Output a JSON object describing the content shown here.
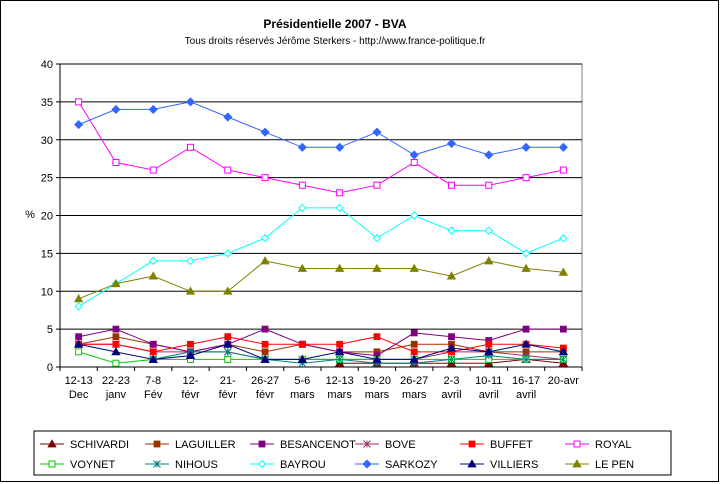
{
  "chart_data": {
    "type": "line",
    "title": "Présidentielle 2007 - BVA",
    "subtitle": "Tous droits réservés Jérôme Sterkers - http://www.france-politique.fr",
    "xlabel": "",
    "ylabel": "%",
    "ylim": [
      0,
      40
    ],
    "yticks": [
      0,
      5,
      10,
      15,
      20,
      25,
      30,
      35,
      40
    ],
    "grid": true,
    "legend_position": "bottom",
    "categories": [
      [
        "12-13",
        "Dec"
      ],
      [
        "22-23",
        "janv"
      ],
      [
        "7-8",
        "Fév"
      ],
      [
        "12-",
        "févr"
      ],
      [
        "21-",
        "févr"
      ],
      [
        "26-27",
        "févr"
      ],
      [
        "5-6",
        "mars"
      ],
      [
        "12-13",
        "mars"
      ],
      [
        "19-20",
        "mars"
      ],
      [
        "26-27",
        "mars"
      ],
      [
        "2-3",
        "avril"
      ],
      [
        "10-11",
        "avril"
      ],
      [
        "16-17",
        "avril"
      ],
      [
        "20-avr",
        ""
      ]
    ],
    "series": [
      {
        "name": "SCHIVARDI",
        "color": "#800000",
        "marker": "triangle",
        "values": [
          null,
          null,
          null,
          null,
          null,
          null,
          null,
          0.5,
          0.5,
          0.5,
          0.5,
          0.5,
          1,
          0.5
        ]
      },
      {
        "name": "LAGUILLER",
        "color": "#993300",
        "marker": "square",
        "values": [
          3,
          4,
          3,
          2,
          3,
          2,
          3,
          2,
          2,
          3,
          3,
          2,
          2,
          2
        ]
      },
      {
        "name": "BESANCENOT",
        "color": "#800080",
        "marker": "square",
        "values": [
          4,
          5,
          3,
          2,
          3,
          5,
          3,
          2,
          1.5,
          4.5,
          4,
          3.5,
          5,
          5
        ]
      },
      {
        "name": "BOVE",
        "color": "#993366",
        "marker": "star",
        "values": [
          3,
          3,
          2,
          2,
          2,
          1,
          1,
          1,
          1,
          1,
          2,
          2,
          1.5,
          1
        ]
      },
      {
        "name": "BUFFET",
        "color": "#ff0000",
        "marker": "square",
        "values": [
          3,
          3,
          2,
          3,
          4,
          3,
          3,
          3,
          4,
          2,
          2,
          3,
          3,
          2.5
        ]
      },
      {
        "name": "ROYAL",
        "color": "#ff00ff",
        "marker": "square-open",
        "values": [
          35,
          27,
          26,
          29,
          26,
          25,
          24,
          23,
          24,
          27,
          24,
          24,
          25,
          26
        ]
      },
      {
        "name": "VOYNET",
        "color": "#00cc00",
        "marker": "square-open",
        "values": [
          2,
          0.5,
          1,
          1,
          1,
          1,
          1,
          1,
          1,
          1,
          1,
          1,
          1,
          1
        ]
      },
      {
        "name": "NIHOUS",
        "color": "#008080",
        "marker": "star",
        "values": [
          null,
          null,
          1,
          2,
          2,
          1,
          0.5,
          1,
          0.5,
          0.5,
          1,
          1.5,
          1,
          1
        ]
      },
      {
        "name": "BAYROU",
        "color": "#00ffff",
        "marker": "diamond-open",
        "values": [
          8,
          11,
          14,
          14,
          15,
          17,
          21,
          21,
          17,
          20,
          18,
          18,
          15,
          17
        ]
      },
      {
        "name": "SARKOZY",
        "color": "#3366ff",
        "marker": "diamond",
        "values": [
          32,
          34,
          34,
          35,
          33,
          31,
          29,
          29,
          31,
          28,
          29.5,
          28,
          29,
          29
        ]
      },
      {
        "name": "VILLIERS",
        "color": "#000080",
        "marker": "triangle",
        "values": [
          3,
          2,
          1,
          1.5,
          3,
          1,
          1,
          2,
          1,
          1,
          2.5,
          2,
          3,
          2
        ]
      },
      {
        "name": "LE PEN",
        "color": "#808000",
        "marker": "triangle",
        "values": [
          9,
          11,
          12,
          10,
          10,
          14,
          13,
          13,
          13,
          13,
          12,
          14,
          13,
          12.5
        ]
      }
    ]
  }
}
